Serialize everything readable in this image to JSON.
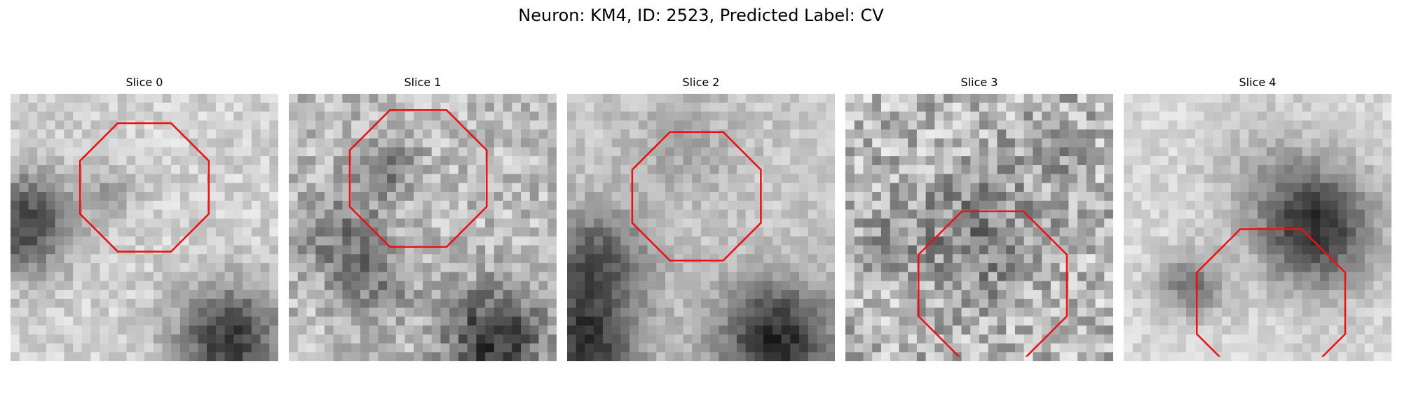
{
  "figure": {
    "title": "Neuron: KM4, ID: 2523, Predicted Label: CV"
  },
  "panels": [
    {
      "title": "Slice 0"
    },
    {
      "title": "Slice 1"
    },
    {
      "title": "Slice 2"
    },
    {
      "title": "Slice 3"
    },
    {
      "title": "Slice 4"
    }
  ],
  "colors": {
    "outline": "#ee1111",
    "colormap": "gray"
  }
}
